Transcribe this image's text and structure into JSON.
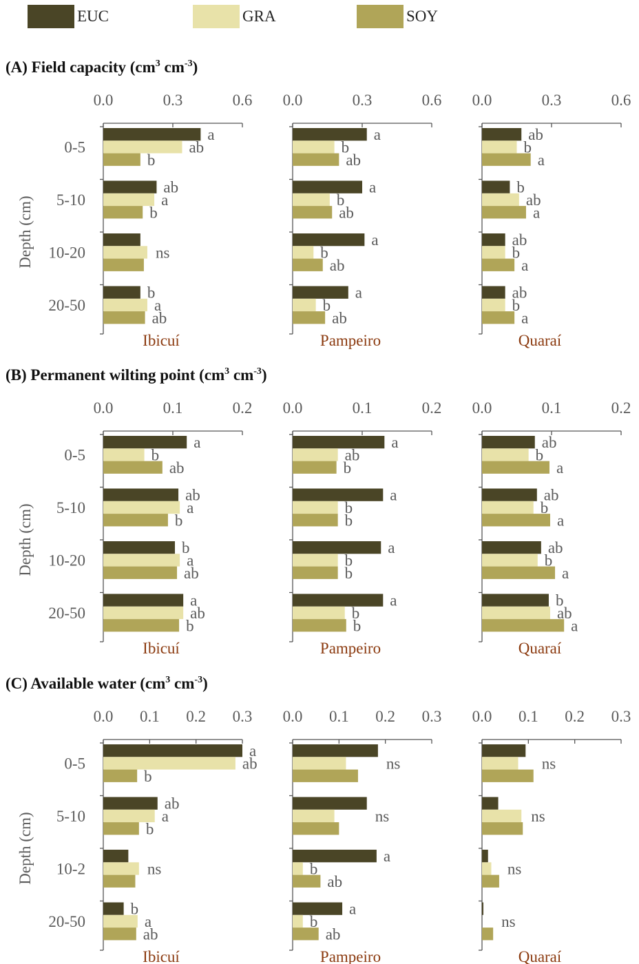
{
  "legend": [
    {
      "label": "EUC",
      "color": "#4a4526"
    },
    {
      "label": "GRA",
      "color": "#e8e2a9"
    },
    {
      "label": "SOY",
      "color": "#b0a558"
    }
  ],
  "chart_data": [
    {
      "type": "bar",
      "orientation": "horizontal",
      "title": "(A) Field capacity (cm3 cm-3)",
      "title_main": "(A) Field capacity (cm",
      "title_unit2": " cm",
      "title_sup1": "3",
      "title_sup2": "-3",
      "title_close": ")",
      "ylabel": "Depth (cm)",
      "categories": [
        "0-5",
        "5-10",
        "10-20",
        "20-50"
      ],
      "xlim": [
        0,
        0.6
      ],
      "xticks": [
        "0.0",
        "0.3",
        "0.6"
      ],
      "series_names": [
        "EUC",
        "GRA",
        "SOY"
      ],
      "panels": [
        {
          "site": "Ibicuí",
          "values": {
            "EUC": [
              0.42,
              0.23,
              0.16,
              0.16
            ],
            "GRA": [
              0.34,
              0.22,
              0.19,
              0.19
            ],
            "SOY": [
              0.16,
              0.17,
              0.175,
              0.18
            ]
          },
          "labels": [
            {
              "type": "per_bar",
              "values": [
                "a",
                "ab",
                "b"
              ]
            },
            {
              "type": "per_bar",
              "values": [
                "ab",
                "a",
                "b"
              ]
            },
            {
              "type": "single",
              "values": [
                "ns"
              ]
            },
            {
              "type": "per_bar",
              "values": [
                "b",
                "a",
                "ab"
              ]
            }
          ]
        },
        {
          "site": "Pampeiro",
          "values": {
            "EUC": [
              0.32,
              0.3,
              0.31,
              0.24
            ],
            "GRA": [
              0.18,
              0.16,
              0.09,
              0.1
            ],
            "SOY": [
              0.2,
              0.17,
              0.13,
              0.14
            ]
          },
          "labels": [
            {
              "type": "per_bar",
              "values": [
                "a",
                "b",
                "ab"
              ]
            },
            {
              "type": "per_bar",
              "values": [
                "a",
                "b",
                "ab"
              ]
            },
            {
              "type": "per_bar",
              "values": [
                "a",
                "b",
                "ab"
              ]
            },
            {
              "type": "per_bar",
              "values": [
                "a",
                "b",
                "ab"
              ]
            }
          ]
        },
        {
          "site": "Quaraí",
          "values": {
            "EUC": [
              0.17,
              0.12,
              0.1,
              0.1
            ],
            "GRA": [
              0.15,
              0.16,
              0.1,
              0.1
            ],
            "SOY": [
              0.21,
              0.19,
              0.14,
              0.14
            ]
          },
          "labels": [
            {
              "type": "per_bar",
              "values": [
                "ab",
                "b",
                "a"
              ]
            },
            {
              "type": "per_bar",
              "values": [
                "b",
                "ab",
                "a"
              ]
            },
            {
              "type": "per_bar",
              "values": [
                "ab",
                "b",
                "a"
              ]
            },
            {
              "type": "per_bar",
              "values": [
                "ab",
                "b",
                "a"
              ]
            }
          ]
        }
      ]
    },
    {
      "type": "bar",
      "orientation": "horizontal",
      "title": "(B) Permanent wilting point (cm3 cm-3)",
      "title_main": "(B) Permanent wilting point (cm",
      "title_unit2": " cm",
      "title_sup1": "3",
      "title_sup2": "-3",
      "title_close": ")",
      "ylabel": "Depth (cm)",
      "categories": [
        "0-5",
        "5-10",
        "10-20",
        "20-50"
      ],
      "xlim": [
        0,
        0.2
      ],
      "xticks": [
        "0.0",
        "0.1",
        "0.2"
      ],
      "series_names": [
        "EUC",
        "GRA",
        "SOY"
      ],
      "panels": [
        {
          "site": "Ibicuí",
          "values": {
            "EUC": [
              0.12,
              0.108,
              0.103,
              0.115
            ],
            "GRA": [
              0.059,
              0.11,
              0.11,
              0.115
            ],
            "SOY": [
              0.085,
              0.093,
              0.106,
              0.109
            ]
          },
          "labels": [
            {
              "type": "per_bar",
              "values": [
                "a",
                "b",
                "ab"
              ]
            },
            {
              "type": "per_bar",
              "values": [
                "ab",
                "a",
                "b"
              ]
            },
            {
              "type": "per_bar",
              "values": [
                "b",
                "a",
                "ab"
              ]
            },
            {
              "type": "per_bar",
              "values": [
                "a",
                "ab",
                "b"
              ]
            }
          ]
        },
        {
          "site": "Pampeiro",
          "values": {
            "EUC": [
              0.132,
              0.13,
              0.127,
              0.13
            ],
            "GRA": [
              0.065,
              0.065,
              0.065,
              0.075
            ],
            "SOY": [
              0.063,
              0.065,
              0.065,
              0.077
            ]
          },
          "labels": [
            {
              "type": "per_bar",
              "values": [
                "a",
                "ab",
                "b"
              ]
            },
            {
              "type": "per_bar",
              "values": [
                "a",
                "b",
                "b"
              ]
            },
            {
              "type": "per_bar",
              "values": [
                "a",
                "b",
                "b"
              ]
            },
            {
              "type": "per_bar",
              "values": [
                "a",
                "b",
                "b"
              ]
            }
          ]
        },
        {
          "site": "Quaraí",
          "values": {
            "EUC": [
              0.076,
              0.079,
              0.085,
              0.096
            ],
            "GRA": [
              0.067,
              0.074,
              0.08,
              0.098
            ],
            "SOY": [
              0.097,
              0.098,
              0.105,
              0.118
            ]
          },
          "labels": [
            {
              "type": "per_bar",
              "values": [
                "ab",
                "b",
                "a"
              ]
            },
            {
              "type": "per_bar",
              "values": [
                "ab",
                "b",
                "a"
              ]
            },
            {
              "type": "per_bar",
              "values": [
                "ab",
                "b",
                "a"
              ]
            },
            {
              "type": "per_bar",
              "values": [
                "b",
                "ab",
                "a"
              ]
            }
          ]
        }
      ]
    },
    {
      "type": "bar",
      "orientation": "horizontal",
      "title": "(C) Available water (cm3 cm-3)",
      "title_main": "(C) Available water (cm",
      "title_unit2": " cm",
      "title_sup1": "3",
      "title_sup2": "-3",
      "title_close": ")",
      "ylabel": "Depth (cm)",
      "categories": [
        "0-5",
        "5-10",
        "10-2",
        "20-50"
      ],
      "xlim": [
        0,
        0.3
      ],
      "xticks": [
        "0.0",
        "0.1",
        "0.2",
        "0.3"
      ],
      "series_names": [
        "EUC",
        "GRA",
        "SOY"
      ],
      "panels": [
        {
          "site": "Ibicuí",
          "values": {
            "EUC": [
              0.3,
              0.117,
              0.054,
              0.044
            ],
            "GRA": [
              0.285,
              0.111,
              0.077,
              0.074
            ],
            "SOY": [
              0.073,
              0.077,
              0.069,
              0.071
            ]
          },
          "labels": [
            {
              "type": "per_bar",
              "values": [
                "a",
                "ab",
                "b"
              ]
            },
            {
              "type": "per_bar",
              "values": [
                "ab",
                "a",
                "b"
              ]
            },
            {
              "type": "single",
              "values": [
                "ns"
              ]
            },
            {
              "type": "per_bar",
              "values": [
                "b",
                "a",
                "ab"
              ]
            }
          ]
        },
        {
          "site": "Pampeiro",
          "values": {
            "EUC": [
              0.184,
              0.16,
              0.181,
              0.107
            ],
            "GRA": [
              0.115,
              0.09,
              0.022,
              0.022
            ],
            "SOY": [
              0.141,
              0.1,
              0.06,
              0.056
            ]
          },
          "labels": [
            {
              "type": "single",
              "values": [
                "ns"
              ]
            },
            {
              "type": "single",
              "values": [
                "ns"
              ]
            },
            {
              "type": "per_bar",
              "values": [
                "a",
                "b",
                "ab"
              ]
            },
            {
              "type": "per_bar",
              "values": [
                "a",
                "b",
                "ab"
              ]
            }
          ]
        },
        {
          "site": "Quaraí",
          "values": {
            "EUC": [
              0.094,
              0.035,
              0.013,
              0.003
            ],
            "GRA": [
              0.078,
              0.085,
              0.02,
              0.0
            ],
            "SOY": [
              0.111,
              0.088,
              0.037,
              0.024
            ]
          },
          "labels": [
            {
              "type": "single",
              "values": [
                "ns"
              ]
            },
            {
              "type": "single",
              "values": [
                "ns"
              ]
            },
            {
              "type": "single",
              "values": [
                "ns"
              ]
            },
            {
              "type": "single",
              "values": [
                "ns"
              ]
            }
          ]
        }
      ]
    }
  ]
}
